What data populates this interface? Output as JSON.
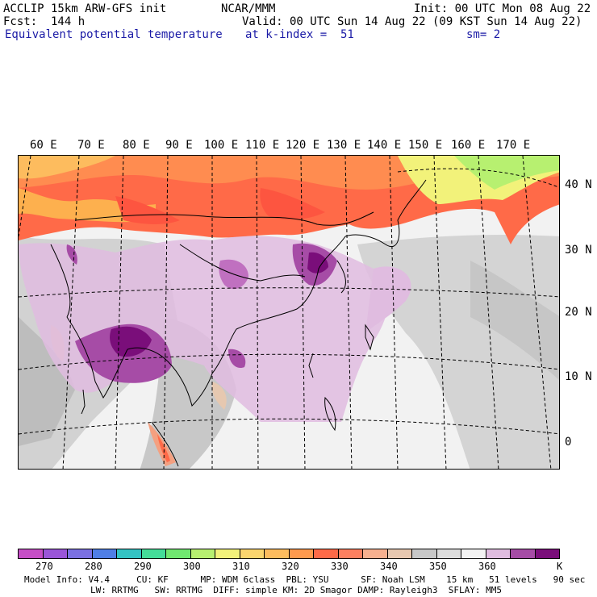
{
  "header": {
    "model": "ACCLIP 15km ARW-GFS init",
    "org": "NCAR/MMM",
    "init": "Init: 00 UTC Mon 08 Aug 22",
    "fcst": "Fcst:  144 h",
    "valid": "Valid: 00 UTC Sun 14 Aug 22 (09 KST Sun 14 Aug 22)",
    "field": "Equivalent potential temperature",
    "level": "at k-index =  51",
    "smooth": "sm= 2"
  },
  "map": {
    "lon_labels": [
      "60 E",
      "70 E",
      "80 E",
      "90 E",
      "100 E",
      "110 E",
      "120 E",
      "130 E",
      "140 E",
      "150 E",
      "160 E",
      "170 E"
    ],
    "lat_labels": [
      "40 N",
      "30 N",
      "20 N",
      "10 N",
      "0"
    ]
  },
  "colorbar": {
    "colors": [
      "#c64ec6",
      "#9a55d8",
      "#7b70e3",
      "#4f7ee6",
      "#33c3c3",
      "#44dd99",
      "#70e870",
      "#b7f070",
      "#f2f27a",
      "#fbd56e",
      "#fdbc5e",
      "#ff9a4e",
      "#ff6a48",
      "#fd8060",
      "#f7b08f",
      "#e8c8b0",
      "#c8c8c8",
      "#dcdcdc",
      "#f2f2f2",
      "#e0bce0",
      "#a64ca6",
      "#7a0e7a"
    ],
    "tick_labels": [
      "270",
      "280",
      "290",
      "300",
      "310",
      "320",
      "330",
      "340",
      "350",
      "360",
      "K"
    ]
  },
  "footer": {
    "line1": "Model Info: V4.4     CU: KF      MP: WDM 6class  PBL: YSU      SF: Noah LSM    15 km   51 levels   90 sec",
    "line2": "LW: RRTMG   SW: RRTMG  DIFF: simple KM: 2D Smagor DAMP: Rayleigh3  SFLAY: MM5"
  }
}
